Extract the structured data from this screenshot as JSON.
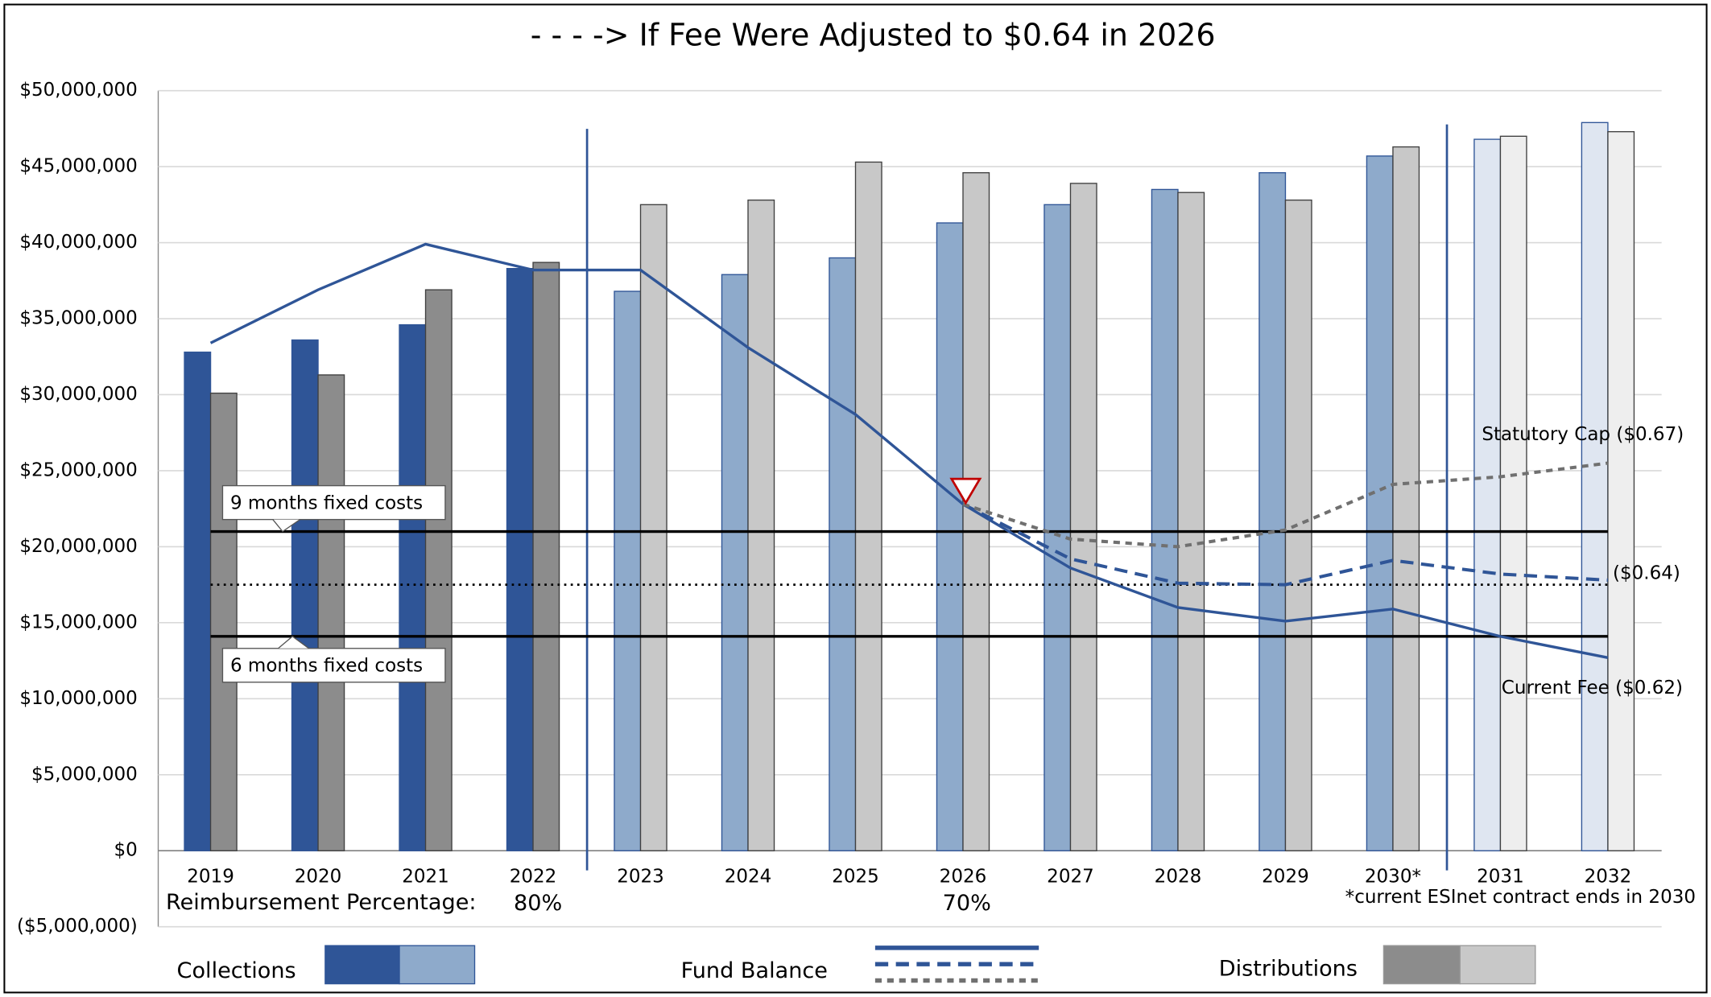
{
  "chart_data": {
    "type": "bar_line",
    "title": "- - - ->  If Fee Were Adjusted to $0.64 in 2026",
    "categories": [
      "2019",
      "2020",
      "2021",
      "2022",
      "2023",
      "2024",
      "2025",
      "2026",
      "2027",
      "2028",
      "2029",
      "2030*",
      "2031",
      "2032"
    ],
    "series": [
      {
        "name": "Collections",
        "type": "bar",
        "stroke": "#2f5597",
        "colors": [
          "#2f5597",
          "#2f5597",
          "#2f5597",
          "#2f5597",
          "#8eaacb",
          "#8eaacb",
          "#8eaacb",
          "#8eaacb",
          "#8eaacb",
          "#8eaacb",
          "#8eaacb",
          "#8eaacb",
          "#dfe6f1",
          "#dfe6f1"
        ],
        "values": [
          32800000,
          33600000,
          34600000,
          38300000,
          36800000,
          37900000,
          39000000,
          41300000,
          42500000,
          43500000,
          44600000,
          45700000,
          46800000,
          47900000
        ]
      },
      {
        "name": "Distributions",
        "type": "bar",
        "stroke": "#404040",
        "colors": [
          "#8c8c8c",
          "#8c8c8c",
          "#8c8c8c",
          "#8c8c8c",
          "#c8c8c8",
          "#c8c8c8",
          "#c8c8c8",
          "#c8c8c8",
          "#c8c8c8",
          "#c8c8c8",
          "#c8c8c8",
          "#c8c8c8",
          "#eeeeee",
          "#eeeeee"
        ],
        "values": [
          30100000,
          31300000,
          36900000,
          38700000,
          42500000,
          42800000,
          45300000,
          44600000,
          43900000,
          43300000,
          42800000,
          46300000,
          47000000,
          47300000
        ]
      },
      {
        "name": "Current Fee ($0.62)",
        "type": "line",
        "color": "#2f5597",
        "dash": "solid",
        "values": [
          33400000,
          36900000,
          39900000,
          38200000,
          38200000,
          33100000,
          28700000,
          22800000,
          18600000,
          16000000,
          15100000,
          15900000,
          14100000,
          12700000
        ]
      },
      {
        "name": "($0.64)",
        "type": "line",
        "color": "#2f5597",
        "dash": "dashed",
        "values": [
          null,
          null,
          null,
          null,
          null,
          null,
          null,
          22800000,
          19200000,
          17600000,
          17500000,
          19100000,
          18200000,
          17800000
        ]
      },
      {
        "name": "Statutory Cap ($0.67)",
        "type": "line",
        "color": "#707070",
        "dash": "dotted-dash",
        "values": [
          null,
          null,
          null,
          null,
          null,
          null,
          null,
          22800000,
          20500000,
          20000000,
          21100000,
          24100000,
          24600000,
          25500000
        ]
      }
    ],
    "reference_lines": [
      {
        "label": "9 months fixed costs",
        "value": 21000000,
        "style": "solid"
      },
      {
        "value": 17500000,
        "style": "dotted"
      },
      {
        "label": "6 months fixed costs",
        "value": 14100000,
        "style": "solid"
      }
    ],
    "ylim": [
      -5000000,
      50000000
    ],
    "yticks": [
      {
        "value": -5000000,
        "label": "($5,000,000)"
      },
      {
        "value": 0,
        "label": "$0"
      },
      {
        "value": 5000000,
        "label": "$5,000,000"
      },
      {
        "value": 10000000,
        "label": "$10,000,000"
      },
      {
        "value": 15000000,
        "label": "$15,000,000"
      },
      {
        "value": 20000000,
        "label": "$20,000,000"
      },
      {
        "value": 25000000,
        "label": "$25,000,000"
      },
      {
        "value": 30000000,
        "label": "$30,000,000"
      },
      {
        "value": 35000000,
        "label": "$35,000,000"
      },
      {
        "value": 40000000,
        "label": "$40,000,000"
      },
      {
        "value": 45000000,
        "label": "$45,000,000"
      },
      {
        "value": 50000000,
        "label": "$50,000,000"
      }
    ],
    "grid": true,
    "reimbursement": {
      "label": "Reimbursement Percentage:",
      "periods": [
        "80%",
        "70%"
      ]
    },
    "footnote": "*current ESInet contract ends in 2030",
    "legend": {
      "collections": "Collections",
      "fund_balance": "Fund Balance",
      "distributions": "Distributions"
    }
  }
}
